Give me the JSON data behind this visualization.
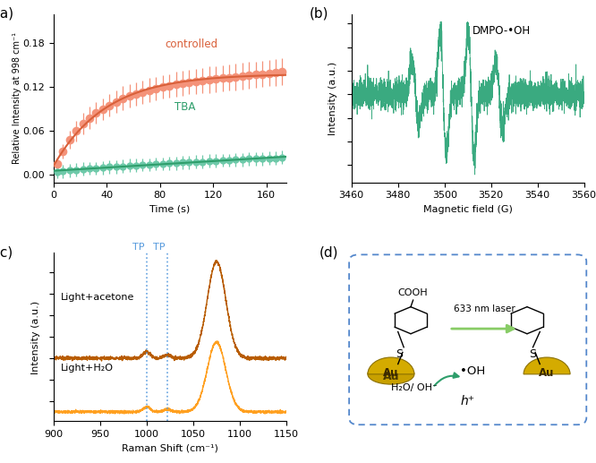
{
  "panel_a": {
    "controlled_x": [
      3,
      7,
      12,
      17,
      22,
      27,
      32,
      37,
      42,
      47,
      52,
      57,
      62,
      67,
      72,
      77,
      82,
      87,
      92,
      97,
      102,
      107,
      112,
      117,
      122,
      127,
      132,
      137,
      142,
      147,
      152,
      157,
      162,
      167,
      172
    ],
    "controlled_y": [
      0.015,
      0.032,
      0.048,
      0.06,
      0.07,
      0.078,
      0.085,
      0.09,
      0.095,
      0.1,
      0.105,
      0.108,
      0.111,
      0.113,
      0.116,
      0.118,
      0.12,
      0.122,
      0.124,
      0.125,
      0.127,
      0.128,
      0.129,
      0.13,
      0.131,
      0.132,
      0.133,
      0.134,
      0.135,
      0.136,
      0.137,
      0.138,
      0.139,
      0.14,
      0.141
    ],
    "controlled_err": [
      0.008,
      0.01,
      0.012,
      0.014,
      0.015,
      0.015,
      0.015,
      0.015,
      0.015,
      0.015,
      0.016,
      0.016,
      0.016,
      0.016,
      0.016,
      0.016,
      0.016,
      0.016,
      0.017,
      0.017,
      0.017,
      0.017,
      0.017,
      0.018,
      0.018,
      0.018,
      0.018,
      0.018,
      0.018,
      0.018,
      0.018,
      0.018,
      0.018,
      0.018,
      0.018
    ],
    "tba_x": [
      3,
      7,
      12,
      17,
      22,
      27,
      32,
      37,
      42,
      47,
      52,
      57,
      62,
      67,
      72,
      77,
      82,
      87,
      92,
      97,
      102,
      107,
      112,
      117,
      122,
      127,
      132,
      137,
      142,
      147,
      152,
      157,
      162,
      167,
      172
    ],
    "tba_y": [
      0.004,
      0.005,
      0.006,
      0.007,
      0.008,
      0.009,
      0.009,
      0.01,
      0.011,
      0.011,
      0.012,
      0.013,
      0.013,
      0.014,
      0.014,
      0.015,
      0.015,
      0.016,
      0.016,
      0.017,
      0.017,
      0.018,
      0.018,
      0.019,
      0.019,
      0.02,
      0.02,
      0.021,
      0.021,
      0.022,
      0.022,
      0.022,
      0.023,
      0.023,
      0.024
    ],
    "tba_err": [
      0.009,
      0.009,
      0.009,
      0.009,
      0.009,
      0.009,
      0.009,
      0.009,
      0.009,
      0.009,
      0.009,
      0.009,
      0.009,
      0.009,
      0.009,
      0.009,
      0.009,
      0.009,
      0.009,
      0.009,
      0.009,
      0.009,
      0.009,
      0.009,
      0.009,
      0.009,
      0.009,
      0.009,
      0.009,
      0.009,
      0.009,
      0.009,
      0.009,
      0.009,
      0.009
    ],
    "controlled_color": "#F4937A",
    "tba_color": "#6EC9A9",
    "controlled_line_color": "#D9603A",
    "tba_line_color": "#2E9E6B",
    "xlabel": "Time (s)",
    "ylabel": "Relative Intensity at 998 cm⁻¹",
    "xlim": [
      0,
      175
    ],
    "ylim": [
      -0.01,
      0.22
    ],
    "yticks": [
      0.0,
      0.06,
      0.12,
      0.18
    ],
    "xticks": [
      0,
      40,
      80,
      120,
      160
    ]
  },
  "panel_b": {
    "epr_color": "#3AAA80",
    "xlabel": "Magnetic field (G)",
    "ylabel": "Intensity (a.u.)",
    "xlim": [
      3460,
      3560
    ],
    "xticks": [
      3460,
      3480,
      3500,
      3520,
      3540,
      3560
    ],
    "label": "DMPO-•OH"
  },
  "panel_c": {
    "orange_dark": "#B85C00",
    "orange_light": "#FFA020",
    "xlabel": "Raman Shift (cm⁻¹)",
    "ylabel": "Intensity (a.u.)",
    "xlim": [
      900,
      1150
    ],
    "xticks": [
      900,
      950,
      1000,
      1050,
      1100,
      1150
    ],
    "tp_lines": [
      1000,
      1022
    ],
    "tp_color": "#5599DD",
    "label_acetone": "Light+acetone",
    "label_water": "Light+H₂O"
  },
  "background_color": "#FFFFFF",
  "panel_labels": [
    "(a)",
    "(b)",
    "(c)",
    "(d)"
  ],
  "label_fontsize": 11
}
